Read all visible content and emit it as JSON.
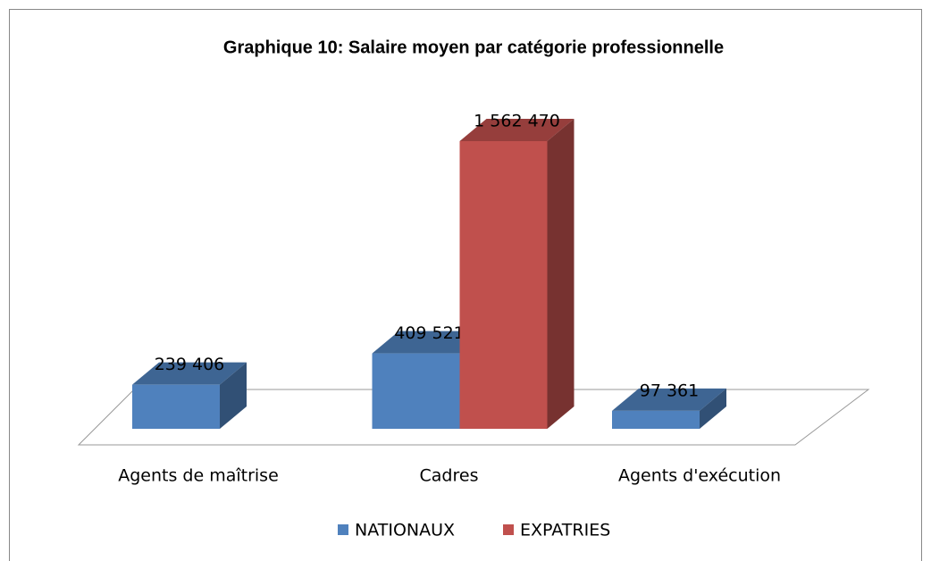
{
  "chart_data": {
    "type": "bar3d",
    "title": "Graphique 10: Salaire moyen par catégorie professionnelle",
    "categories": [
      "Agents de maîtrise",
      "Cadres",
      "Agents d'exécution"
    ],
    "series": [
      {
        "name": "NATIONAUX",
        "color": "#4f81bd",
        "values": [
          239406,
          409521,
          97361
        ],
        "value_labels": [
          "239 406",
          "409 521",
          "97 361"
        ]
      },
      {
        "name": "EXPATRIES",
        "color": "#c0504d",
        "values": [
          null,
          1562470,
          null
        ],
        "value_labels": [
          null,
          "1 562 470",
          null
        ]
      }
    ],
    "legend": "bottom"
  }
}
